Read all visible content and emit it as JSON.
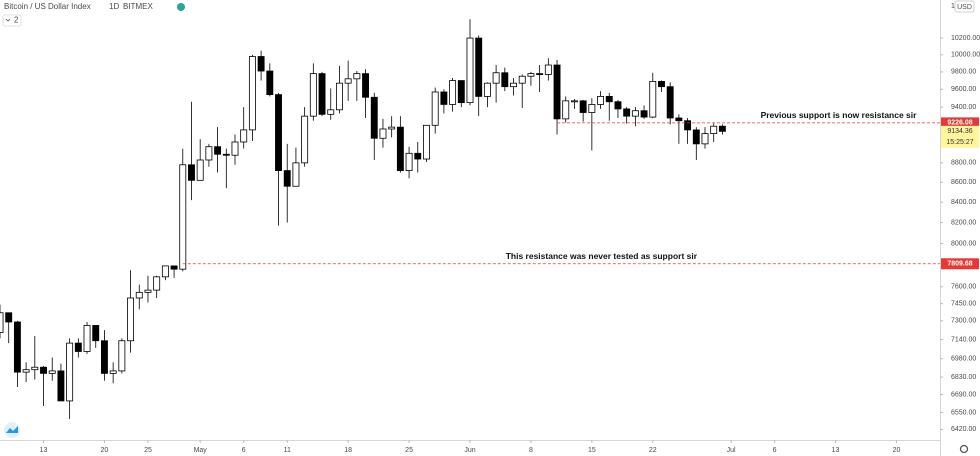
{
  "chart_data": {
    "type": "candlestick",
    "title": "Bitcoin / US Dollar Index",
    "interval": "1D",
    "exchange": "BITMEX",
    "currency": "USD",
    "pane_count": 2,
    "log_scale": true,
    "up_color": "#ffffff",
    "down_color": "#000000",
    "x": [
      "Apr 8",
      "Apr 9",
      "Apr 10",
      "Apr 11",
      "Apr 12",
      "Apr 13",
      "Apr 14",
      "Apr 15",
      "Apr 16",
      "Apr 17",
      "Apr 18",
      "Apr 19",
      "Apr 20",
      "Apr 21",
      "Apr 22",
      "Apr 23",
      "Apr 24",
      "Apr 25",
      "Apr 26",
      "Apr 27",
      "Apr 28",
      "Apr 29",
      "Apr 30",
      "May 1",
      "May 2",
      "May 3",
      "May 4",
      "May 5",
      "May 6",
      "May 7",
      "May 8",
      "May 9",
      "May 10",
      "May 11",
      "May 12",
      "May 13",
      "May 14",
      "May 15",
      "May 16",
      "May 17",
      "May 18",
      "May 19",
      "May 20",
      "May 21",
      "May 22",
      "May 23",
      "May 24",
      "May 25",
      "May 26",
      "May 27",
      "May 28",
      "May 29",
      "May 30",
      "May 31",
      "Jun 1",
      "Jun 2",
      "Jun 3",
      "Jun 4",
      "Jun 5",
      "Jun 6",
      "Jun 7",
      "Jun 8",
      "Jun 9",
      "Jun 10",
      "Jun 11",
      "Jun 12",
      "Jun 13",
      "Jun 14",
      "Jun 15",
      "Jun 16",
      "Jun 17",
      "Jun 18",
      "Jun 19",
      "Jun 20",
      "Jun 21",
      "Jun 22",
      "Jun 23",
      "Jun 24",
      "Jun 25",
      "Jun 26",
      "Jun 27",
      "Jun 28",
      "Jun 29",
      "Jun 30"
    ],
    "open": [
      7200,
      7370,
      7290,
      6870,
      6890,
      6910,
      6860,
      6880,
      6640,
      7110,
      7040,
      7260,
      7130,
      6860,
      6880,
      7130,
      7500,
      7550,
      7570,
      7690,
      7790,
      7760,
      8780,
      8620,
      8830,
      8970,
      8890,
      8880,
      9020,
      9150,
      9980,
      9810,
      9540,
      8720,
      8560,
      8800,
      9300,
      9780,
      9320,
      9370,
      9670,
      9720,
      9780,
      9510,
      9060,
      9160,
      9180,
      8720,
      8900,
      8840,
      9200,
      9570,
      9430,
      9700,
      9450,
      10200,
      9520,
      9670,
      9790,
      9630,
      9670,
      9750,
      9780,
      9770,
      9880,
      9270,
      9470,
      9470,
      9340,
      9430,
      9520,
      9460,
      9380,
      9300,
      9360,
      9290,
      9690,
      9630,
      9280,
      9250,
      9150,
      9000,
      9110,
      9190
    ],
    "high": [
      7440,
      7370,
      7300,
      6950,
      7170,
      6920,
      6990,
      6940,
      7150,
      7150,
      7290,
      7260,
      7220,
      6950,
      7150,
      7750,
      7620,
      7700,
      7700,
      7790,
      7790,
      8950,
      9460,
      9050,
      9000,
      9180,
      8950,
      9100,
      9400,
      10000,
      10050,
      9900,
      9560,
      9000,
      8960,
      9400,
      9900,
      9800,
      9610,
      9870,
      9930,
      9810,
      9830,
      9560,
      9270,
      9300,
      9300,
      8970,
      9020,
      9200,
      9620,
      9600,
      9730,
      9700,
      10430,
      10230,
      9680,
      9880,
      9850,
      9730,
      9770,
      9800,
      9880,
      9960,
      9940,
      9520,
      9490,
      9480,
      9500,
      9580,
      9560,
      9480,
      9400,
      9400,
      9420,
      9790,
      9700,
      9680,
      9320,
      9280,
      9180,
      9180,
      9220,
      9210
    ],
    "low": [
      7150,
      7110,
      6750,
      6790,
      6810,
      6600,
      6800,
      6640,
      6500,
      6990,
      7020,
      7070,
      6800,
      6780,
      6860,
      7030,
      7400,
      7460,
      7500,
      7660,
      7680,
      7740,
      8420,
      8620,
      8760,
      8700,
      8540,
      8780,
      8950,
      9030,
      9700,
      9520,
      8170,
      8200,
      8560,
      8760,
      9250,
      9300,
      9260,
      9330,
      9470,
      9470,
      9280,
      8830,
      8960,
      9070,
      8700,
      8640,
      8700,
      8810,
      9110,
      9330,
      9350,
      9400,
      9420,
      9300,
      9400,
      9450,
      9580,
      9530,
      9390,
      9640,
      9570,
      9700,
      9100,
      9230,
      9380,
      9240,
      8930,
      9380,
      9250,
      9280,
      9220,
      9190,
      9270,
      9280,
      9570,
      9210,
      9000,
      9000,
      8830,
      8950,
      9020,
      9100
    ],
    "close": [
      7370,
      7290,
      6870,
      6890,
      6910,
      6860,
      6880,
      6640,
      7110,
      7040,
      7260,
      7130,
      6860,
      6880,
      7130,
      7500,
      7550,
      7570,
      7690,
      7790,
      7760,
      8780,
      8620,
      8830,
      8970,
      8890,
      8880,
      9020,
      9150,
      9980,
      9810,
      9540,
      8720,
      8560,
      8800,
      9300,
      9780,
      9320,
      9370,
      9670,
      9720,
      9780,
      9510,
      9060,
      9160,
      9180,
      8720,
      8900,
      8840,
      9200,
      9570,
      9430,
      9700,
      9450,
      10200,
      9520,
      9670,
      9790,
      9630,
      9670,
      9750,
      9780,
      9770,
      9880,
      9270,
      9470,
      9470,
      9340,
      9430,
      9520,
      9460,
      9380,
      9300,
      9360,
      9290,
      9690,
      9630,
      9280,
      9250,
      9150,
      9000,
      9110,
      9190,
      9134.36
    ],
    "xlim": [
      "Apr 8",
      "Jul 25"
    ],
    "xticks": [
      {
        "value": "Apr 13",
        "label": "13"
      },
      {
        "value": "Apr 20",
        "label": "20"
      },
      {
        "value": "Apr 25",
        "label": "25"
      },
      {
        "value": "May 1",
        "label": "May"
      },
      {
        "value": "May 6",
        "label": "6"
      },
      {
        "value": "May 11",
        "label": "11"
      },
      {
        "value": "May 18",
        "label": "18"
      },
      {
        "value": "May 25",
        "label": "25"
      },
      {
        "value": "Jun 1",
        "label": "Jun"
      },
      {
        "value": "Jun 8",
        "label": "8"
      },
      {
        "value": "Jun 15",
        "label": "15"
      },
      {
        "value": "Jun 22",
        "label": "22"
      },
      {
        "value": "Jul 1",
        "label": "Jul"
      },
      {
        "value": "Jul 6",
        "label": "6"
      },
      {
        "value": "Jul 13",
        "label": "13"
      },
      {
        "value": "Jul 20",
        "label": "20"
      }
    ],
    "ylim": [
      6340,
      10670
    ],
    "yticks": [
      {
        "value": 6420,
        "label": "6420.00"
      },
      {
        "value": 6550,
        "label": "6550.00"
      },
      {
        "value": 6690,
        "label": "6690.00"
      },
      {
        "value": 6830,
        "label": "6830.00"
      },
      {
        "value": 6980,
        "label": "6980.00"
      },
      {
        "value": 7140,
        "label": "7140.00"
      },
      {
        "value": 7300,
        "label": "7300.00"
      },
      {
        "value": 7450,
        "label": "7450.00"
      },
      {
        "value": 7600,
        "label": "7600.00"
      },
      {
        "value": 8000,
        "label": "8000.00"
      },
      {
        "value": 8200,
        "label": "8200.00"
      },
      {
        "value": 8400,
        "label": "8400.00"
      },
      {
        "value": 8600,
        "label": "8600.00"
      },
      {
        "value": 8800,
        "label": "8800.00"
      },
      {
        "value": 9400,
        "label": "9400.00"
      },
      {
        "value": 9600,
        "label": "9600.00"
      },
      {
        "value": 9800,
        "label": "9800.00"
      },
      {
        "value": 10000,
        "label": "10000.00"
      },
      {
        "value": 10200,
        "label": "10200.00"
      }
    ],
    "last_price": 9134.36,
    "countdown": "15:25:27",
    "hlines": [
      {
        "value": 9226.08,
        "start": "Jun 11",
        "color": "#e53935",
        "text": "Previous support is now resistance sir"
      },
      {
        "value": 7809.68,
        "start": "Apr 29",
        "color": "#e53935",
        "text": "This resistance was never tested as support sir"
      }
    ]
  }
}
